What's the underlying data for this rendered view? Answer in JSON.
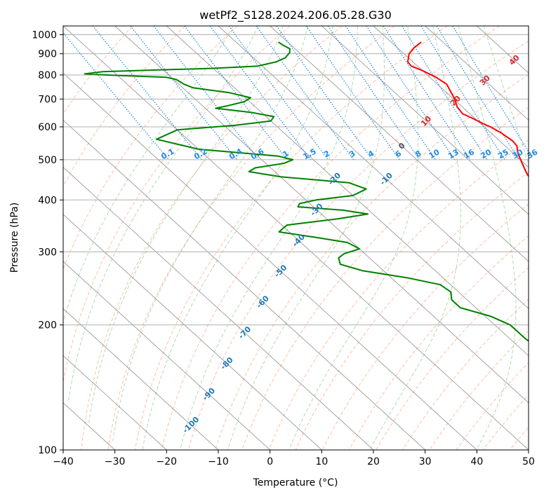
{
  "chart_data": {
    "type": "line",
    "title": "wetPf2_S128.2024.206.05.28.G30",
    "xlabel": "Temperature (°C)",
    "ylabel": "Pressure (hPa)",
    "xlim": [
      -40,
      50
    ],
    "ylim": [
      1050,
      100
    ],
    "y_scale": "log",
    "skew": "skew-T log-p",
    "x_ticks": [
      "−40",
      "−30",
      "−20",
      "−10",
      "0",
      "10",
      "20",
      "30",
      "40",
      "50"
    ],
    "x_tick_values": [
      -40,
      -30,
      -20,
      -10,
      0,
      10,
      20,
      30,
      40,
      50
    ],
    "y_ticks": [
      "100",
      "200",
      "300",
      "400",
      "500",
      "600",
      "700",
      "800",
      "900",
      "1000"
    ],
    "y_tick_values": [
      100,
      200,
      300,
      400,
      500,
      600,
      700,
      800,
      900,
      1000
    ],
    "grid": true,
    "series": [
      {
        "color": "#ff0000",
        "points": [
          [
            960,
            25.8
          ],
          [
            930,
            23.2
          ],
          [
            900,
            21.0
          ],
          [
            860,
            19.0
          ],
          [
            840,
            18.8
          ],
          [
            820,
            20.0
          ],
          [
            790,
            21.2
          ],
          [
            760,
            21.8
          ],
          [
            730,
            21.0
          ],
          [
            700,
            20.2
          ],
          [
            670,
            19.0
          ],
          [
            645,
            18.6
          ],
          [
            630,
            19.5
          ],
          [
            610,
            20.5
          ],
          [
            600,
            21.2
          ],
          [
            580,
            22.0
          ],
          [
            555,
            22.5
          ],
          [
            540,
            22.3
          ],
          [
            520,
            21.0
          ],
          [
            490,
            19.6
          ],
          [
            460,
            18.2
          ],
          [
            430,
            17.6
          ],
          [
            410,
            17.7
          ],
          [
            395,
            17.2
          ],
          [
            380,
            17.0
          ],
          [
            365,
            17.9
          ],
          [
            350,
            18.0
          ],
          [
            330,
            16.9
          ],
          [
            305,
            15.6
          ],
          [
            280,
            14.4
          ],
          [
            260,
            12.9
          ],
          [
            240,
            11.6
          ],
          [
            220,
            10.5
          ],
          [
            200,
            9.7
          ],
          [
            180,
            8.9
          ],
          [
            160,
            7.3
          ],
          [
            145,
            5.2
          ],
          [
            135,
            3.6
          ],
          [
            128,
            2.9
          ],
          [
            122,
            3.6
          ],
          [
            115,
            5.4
          ],
          [
            108,
            7.4
          ],
          [
            102,
            8.6
          ],
          [
            100,
            9.0
          ]
        ]
      },
      {
        "color": "#008000",
        "points": [
          [
            960,
            -1.8
          ],
          [
            945,
            -1.6
          ],
          [
            925,
            -1.0
          ],
          [
            905,
            -1.9
          ],
          [
            880,
            -3.8
          ],
          [
            860,
            -6.5
          ],
          [
            840,
            -11.0
          ],
          [
            830,
            -20.0
          ],
          [
            822,
            -32.0
          ],
          [
            815,
            -42.0
          ],
          [
            805,
            -46.0
          ],
          [
            800,
            -42.0
          ],
          [
            790,
            -31.0
          ],
          [
            780,
            -29.5
          ],
          [
            760,
            -29.0
          ],
          [
            745,
            -28.0
          ],
          [
            725,
            -22.0
          ],
          [
            705,
            -19.0
          ],
          [
            690,
            -21.0
          ],
          [
            675,
            -25.0
          ],
          [
            665,
            -28.0
          ],
          [
            650,
            -22.0
          ],
          [
            635,
            -18.5
          ],
          [
            620,
            -20.0
          ],
          [
            605,
            -28.0
          ],
          [
            590,
            -40.0
          ],
          [
            560,
            -46.0
          ],
          [
            530,
            -40.0
          ],
          [
            510,
            -26.0
          ],
          [
            500,
            -24.0
          ],
          [
            490,
            -26.5
          ],
          [
            478,
            -33.0
          ],
          [
            468,
            -35.0
          ],
          [
            455,
            -30.0
          ],
          [
            440,
            -18.0
          ],
          [
            425,
            -16.0
          ],
          [
            410,
            -20.0
          ],
          [
            400,
            -28.0
          ],
          [
            392,
            -32.0
          ],
          [
            385,
            -33.0
          ],
          [
            378,
            -25.0
          ],
          [
            370,
            -21.0
          ],
          [
            360,
            -28.0
          ],
          [
            348,
            -39.0
          ],
          [
            335,
            -42.0
          ],
          [
            325,
            -36.0
          ],
          [
            316,
            -31.0
          ],
          [
            305,
            -30.0
          ],
          [
            297,
            -34.0
          ],
          [
            290,
            -36.0
          ],
          [
            280,
            -37.0
          ],
          [
            270,
            -34.0
          ],
          [
            260,
            -27.0
          ],
          [
            250,
            -22.0
          ],
          [
            240,
            -21.5
          ],
          [
            230,
            -23.0
          ],
          [
            220,
            -23.0
          ],
          [
            210,
            -19.0
          ],
          [
            200,
            -17.0
          ],
          [
            185,
            -17.0
          ],
          [
            170,
            -16.0
          ],
          [
            155,
            -13.0
          ],
          [
            140,
            -11.0
          ],
          [
            128,
            -10.0
          ],
          [
            118,
            -10.5
          ],
          [
            110,
            -12.0
          ],
          [
            104,
            -12.5
          ],
          [
            100,
            -12.4
          ]
        ]
      }
    ],
    "isotherm_labels": [
      "-100",
      "-90",
      "-80",
      "-70",
      "-60",
      "-50",
      "-40",
      "-30",
      "-20",
      "-10",
      "0",
      "10",
      "20",
      "30",
      "40"
    ],
    "mixing_ratio_labels": [
      "0.1",
      "0.2",
      "0.4",
      "0.6",
      "1",
      "1.5",
      "2",
      "3",
      "4",
      "6",
      "8",
      "10",
      "13",
      "16",
      "20",
      "25",
      "30",
      "36"
    ],
    "colors": {
      "temperature": "#ff0000",
      "dewpoint": "#008000",
      "isotherm": "#808080",
      "dry_adiabat": "#ff8c5a",
      "moist_adiabat": "#7fc07f",
      "mixing_ratio": "#1e88e5",
      "cold_label": "#1f77b4",
      "warm_label": "#d62728"
    }
  }
}
